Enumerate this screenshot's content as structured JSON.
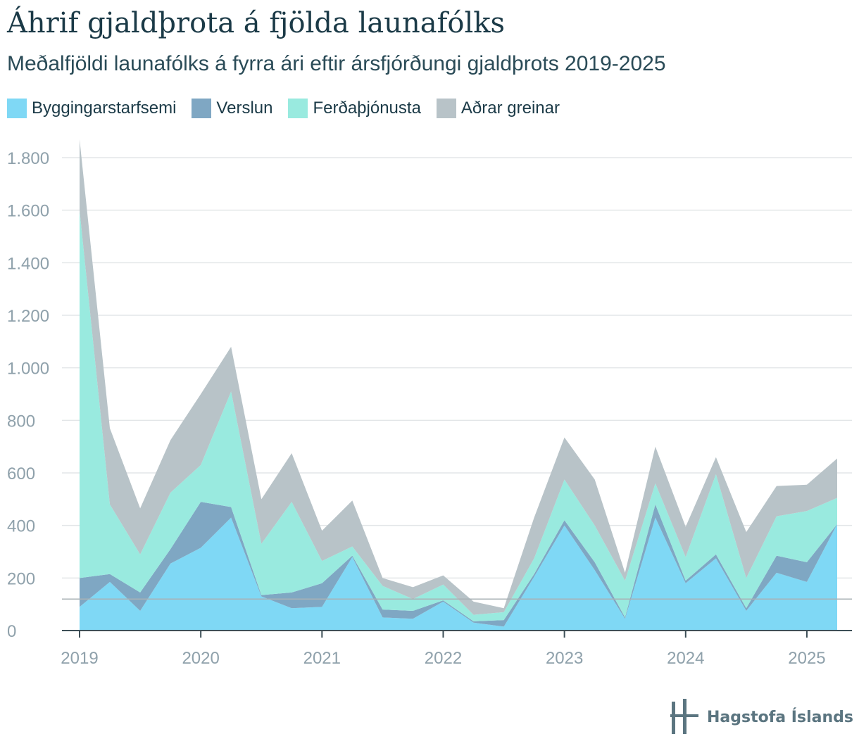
{
  "header": {
    "title": "Áhrif gjaldþrota á fjölda launafólks",
    "subtitle": "Meðalfjöldi launafólks á fyrra ári eftir ársfjórðungi gjaldþrots 2019-2025"
  },
  "logo": {
    "text": "Hagstofa Íslands",
    "icon": "hagstofa-logo-icon"
  },
  "colors": {
    "Byggingarstarfsemi": "#7fd8f5",
    "Verslun": "#7fa7c3",
    "Ferðaþjónusta": "#99eadf",
    "Aðrar greinar": "#b8c3c8",
    "grid": "#e3e6e8",
    "axis_text": "#8fa1ab"
  },
  "chart_data": {
    "type": "area",
    "stacked": true,
    "title": "Áhrif gjaldþrota á fjölda launafólks",
    "subtitle": "Meðalfjöldi launafólks á fyrra ári eftir ársfjórðungi gjaldþrots 2019-2025",
    "xlabel": "",
    "ylabel": "",
    "x": [
      "2019Q1",
      "2019Q2",
      "2019Q3",
      "2019Q4",
      "2020Q1",
      "2020Q2",
      "2020Q3",
      "2020Q4",
      "2021Q1",
      "2021Q2",
      "2021Q3",
      "2021Q4",
      "2022Q1",
      "2022Q2",
      "2022Q3",
      "2022Q4",
      "2023Q1",
      "2023Q2",
      "2023Q3",
      "2023Q4",
      "2024Q1",
      "2024Q2",
      "2024Q3",
      "2024Q4",
      "2025Q1",
      "2025Q2"
    ],
    "x_tick_labels": [
      "2019",
      "2020",
      "2021",
      "2022",
      "2023",
      "2024",
      "2025"
    ],
    "ylim": [
      0,
      1800
    ],
    "y_ticks": [
      0,
      200,
      400,
      600,
      800,
      1000,
      1200,
      1400,
      1600,
      1800
    ],
    "y_tick_labels": [
      "0",
      "200",
      "400",
      "600",
      "800",
      "1.000",
      "1.200",
      "1.400",
      "1.600",
      "1.800"
    ],
    "reference_line": 120,
    "grid": true,
    "legend_position": "top-left",
    "series": [
      {
        "name": "Byggingarstarfsemi",
        "values": [
          90,
          185,
          75,
          255,
          315,
          430,
          130,
          85,
          90,
          280,
          50,
          45,
          110,
          30,
          15,
          205,
          400,
          230,
          45,
          430,
          180,
          275,
          75,
          220,
          185,
          405
        ]
      },
      {
        "name": "Verslun",
        "values": [
          110,
          30,
          70,
          55,
          175,
          40,
          5,
          60,
          90,
          5,
          30,
          30,
          5,
          5,
          25,
          10,
          20,
          30,
          5,
          50,
          10,
          15,
          10,
          65,
          75,
          0
        ]
      },
      {
        "name": "Ferðaþjónusta",
        "values": [
          1400,
          265,
          145,
          215,
          140,
          440,
          195,
          345,
          85,
          35,
          90,
          45,
          60,
          25,
          30,
          60,
          155,
          140,
          140,
          80,
          90,
          305,
          115,
          150,
          195,
          100
        ]
      },
      {
        "name": "Aðrar greinar",
        "values": [
          270,
          290,
          175,
          200,
          270,
          170,
          170,
          185,
          115,
          175,
          30,
          45,
          35,
          50,
          15,
          155,
          160,
          175,
          30,
          140,
          115,
          65,
          175,
          115,
          100,
          150
        ]
      }
    ]
  }
}
